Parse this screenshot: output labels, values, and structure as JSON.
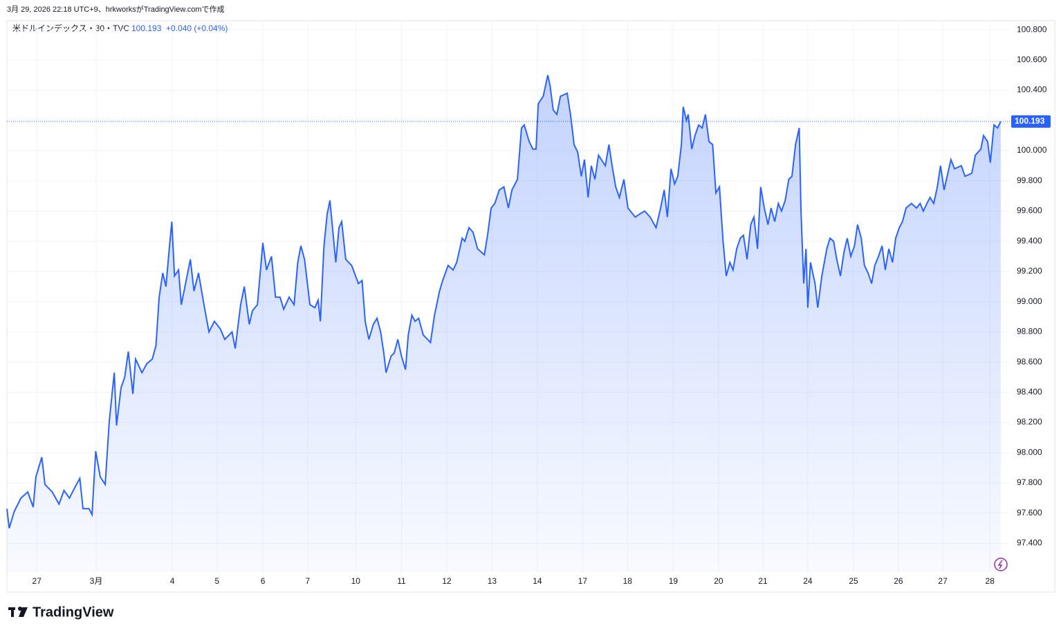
{
  "header": {
    "created": "3月 29, 2026 22:18 UTC+9、hrkworksがTradingView.comで作成",
    "symbol": "米ドルインデックス・30・TVC",
    "change": "+0.040 (+0.04%)",
    "logo": "TradingView"
  },
  "chart_data": {
    "type": "area",
    "color": "#2962ff",
    "grid": true,
    "xlim": [
      -0.66,
      21.48
    ],
    "ylim": [
      97.21,
      100.86
    ],
    "xticks": [
      {
        "value": 0,
        "label": "27"
      },
      {
        "value": 1.31,
        "label": "3月"
      },
      {
        "value": 2.99,
        "label": "4"
      },
      {
        "value": 3.98,
        "label": "5"
      },
      {
        "value": 4.99,
        "label": "6"
      },
      {
        "value": 5.98,
        "label": "7"
      },
      {
        "value": 7.04,
        "label": "10"
      },
      {
        "value": 8.05,
        "label": "11"
      },
      {
        "value": 9.05,
        "label": "12"
      },
      {
        "value": 10.05,
        "label": "13"
      },
      {
        "value": 11.05,
        "label": "14"
      },
      {
        "value": 12.05,
        "label": "17"
      },
      {
        "value": 13.04,
        "label": "18"
      },
      {
        "value": 14.05,
        "label": "19"
      },
      {
        "value": 15.05,
        "label": "20"
      },
      {
        "value": 16.03,
        "label": "21"
      },
      {
        "value": 17.02,
        "label": "24"
      },
      {
        "value": 18.03,
        "label": "25"
      },
      {
        "value": 19.02,
        "label": "26"
      },
      {
        "value": 20.0,
        "label": "27"
      },
      {
        "value": 21.04,
        "label": "28"
      }
    ],
    "yticks": [
      {
        "value": 97.4,
        "label": "97.400"
      },
      {
        "value": 97.6,
        "label": "97.600"
      },
      {
        "value": 97.8,
        "label": "97.800"
      },
      {
        "value": 98.0,
        "label": "98.000"
      },
      {
        "value": 98.2,
        "label": "98.200"
      },
      {
        "value": 98.4,
        "label": "98.400"
      },
      {
        "value": 98.6,
        "label": "98.600"
      },
      {
        "value": 98.8,
        "label": "98.800"
      },
      {
        "value": 99.0,
        "label": "99.000"
      },
      {
        "value": 99.2,
        "label": "99.200"
      },
      {
        "value": 99.4,
        "label": "99.400"
      },
      {
        "value": 99.6,
        "label": "99.600"
      },
      {
        "value": 99.8,
        "label": "99.800"
      },
      {
        "value": 100.0,
        "label": "100.000"
      },
      {
        "value": 100.2,
        "label": "100.200"
      },
      {
        "value": 100.4,
        "label": "100.400"
      },
      {
        "value": 100.6,
        "label": "100.600"
      },
      {
        "value": 100.8,
        "label": "100.800"
      }
    ],
    "x": [
      -0.66,
      -0.61,
      -0.5,
      -0.35,
      -0.2,
      -0.08,
      -0.02,
      0.11,
      0.18,
      0.34,
      0.49,
      0.6,
      0.72,
      0.84,
      0.95,
      1.02,
      1.15,
      1.22,
      1.3,
      1.4,
      1.51,
      1.6,
      1.71,
      1.76,
      1.86,
      1.94,
      2.02,
      2.12,
      2.18,
      2.32,
      2.43,
      2.55,
      2.63,
      2.7,
      2.78,
      2.85,
      2.93,
      2.98,
      3.04,
      3.13,
      3.19,
      3.25,
      3.39,
      3.47,
      3.57,
      3.69,
      3.8,
      3.92,
      4.05,
      4.15,
      4.31,
      4.38,
      4.5,
      4.58,
      4.69,
      4.76,
      4.87,
      4.99,
      5.07,
      5.18,
      5.27,
      5.37,
      5.45,
      5.57,
      5.68,
      5.76,
      5.83,
      5.91,
      6.03,
      6.14,
      6.21,
      6.26,
      6.34,
      6.41,
      6.47,
      6.6,
      6.67,
      6.73,
      6.82,
      6.95,
      7.1,
      7.18,
      7.25,
      7.33,
      7.43,
      7.51,
      7.59,
      7.66,
      7.71,
      7.82,
      7.89,
      7.97,
      8.05,
      8.14,
      8.2,
      8.28,
      8.35,
      8.43,
      8.53,
      8.69,
      8.78,
      8.89,
      8.96,
      9.08,
      9.19,
      9.27,
      9.39,
      9.45,
      9.54,
      9.63,
      9.73,
      9.88,
      9.95,
      10.03,
      10.11,
      10.21,
      10.31,
      10.41,
      10.49,
      10.61,
      10.7,
      10.76,
      10.87,
      10.95,
      11.02,
      11.07,
      11.18,
      11.28,
      11.33,
      11.4,
      11.48,
      11.56,
      11.71,
      11.79,
      11.86,
      11.94,
      12.02,
      12.09,
      12.17,
      12.24,
      12.32,
      12.4,
      12.55,
      12.63,
      12.7,
      12.78,
      12.86,
      12.96,
      13.05,
      13.21,
      13.31,
      13.42,
      13.54,
      13.67,
      13.77,
      13.85,
      13.92,
      14.0,
      14.08,
      14.15,
      14.23,
      14.27,
      14.34,
      14.38,
      14.46,
      14.53,
      14.61,
      14.69,
      14.76,
      14.84,
      14.92,
      14.99,
      15.07,
      15.15,
      15.22,
      15.3,
      15.37,
      15.45,
      15.53,
      15.6,
      15.68,
      15.76,
      15.83,
      15.91,
      15.98,
      16.06,
      16.14,
      16.21,
      16.29,
      16.37,
      16.44,
      16.52,
      16.6,
      16.67,
      16.75,
      16.83,
      16.87,
      16.93,
      16.98,
      17.02,
      17.08,
      17.18,
      17.24,
      17.33,
      17.44,
      17.51,
      17.59,
      17.66,
      17.74,
      17.82,
      17.89,
      17.97,
      18.05,
      18.12,
      18.2,
      18.27,
      18.35,
      18.43,
      18.5,
      18.58,
      18.66,
      18.73,
      18.81,
      18.89,
      18.96,
      19.04,
      19.11,
      19.19,
      19.31,
      19.42,
      19.5,
      19.57,
      19.65,
      19.72,
      19.8,
      19.88,
      19.95,
      20.03,
      20.11,
      20.18,
      20.26,
      20.41,
      20.49,
      20.64,
      20.72,
      20.84,
      20.9,
      20.99,
      21.05,
      21.13,
      21.21,
      21.28
    ],
    "values": [
      97.63,
      97.5,
      97.61,
      97.7,
      97.74,
      97.64,
      97.84,
      97.97,
      97.79,
      97.74,
      97.66,
      97.75,
      97.7,
      97.77,
      97.83,
      97.63,
      97.63,
      97.59,
      98.01,
      97.84,
      97.79,
      98.21,
      98.53,
      98.18,
      98.43,
      98.5,
      98.67,
      98.39,
      98.62,
      98.53,
      98.59,
      98.62,
      98.71,
      99.03,
      99.19,
      99.1,
      99.37,
      99.53,
      99.17,
      99.21,
      98.98,
      99.07,
      99.28,
      99.07,
      99.19,
      98.98,
      98.8,
      98.87,
      98.82,
      98.75,
      98.8,
      98.69,
      98.98,
      99.1,
      98.85,
      98.94,
      98.98,
      99.39,
      99.21,
      99.3,
      99.03,
      99.03,
      98.95,
      99.03,
      98.98,
      99.26,
      99.37,
      99.28,
      98.98,
      98.96,
      99.01,
      98.87,
      99.37,
      99.58,
      99.67,
      99.26,
      99.49,
      99.53,
      99.28,
      99.24,
      99.12,
      99.14,
      98.87,
      98.75,
      98.85,
      98.89,
      98.8,
      98.66,
      98.53,
      98.64,
      98.66,
      98.75,
      98.64,
      98.55,
      98.78,
      98.91,
      98.87,
      98.89,
      98.78,
      98.73,
      98.91,
      99.07,
      99.14,
      99.24,
      99.21,
      99.26,
      99.42,
      99.4,
      99.49,
      99.46,
      99.35,
      99.31,
      99.44,
      99.62,
      99.65,
      99.74,
      99.76,
      99.62,
      99.74,
      99.81,
      100.15,
      100.17,
      100.06,
      100.01,
      100.01,
      100.31,
      100.36,
      100.5,
      100.43,
      100.27,
      100.24,
      100.36,
      100.38,
      100.22,
      100.04,
      99.99,
      99.83,
      99.94,
      99.69,
      99.9,
      99.81,
      99.97,
      99.9,
      100.04,
      99.9,
      99.76,
      99.69,
      99.81,
      99.62,
      99.56,
      99.58,
      99.6,
      99.56,
      99.49,
      99.62,
      99.74,
      99.56,
      99.88,
      99.78,
      99.83,
      100.04,
      100.29,
      100.2,
      100.24,
      100.01,
      100.1,
      100.17,
      100.15,
      100.24,
      100.06,
      100.04,
      99.72,
      99.76,
      99.4,
      99.17,
      99.26,
      99.21,
      99.35,
      99.42,
      99.44,
      99.28,
      99.51,
      99.56,
      99.35,
      99.76,
      99.62,
      99.51,
      99.62,
      99.53,
      99.65,
      99.6,
      99.67,
      99.81,
      99.83,
      100.04,
      100.15,
      99.6,
      99.12,
      99.35,
      98.96,
      99.26,
      99.12,
      98.96,
      99.17,
      99.35,
      99.42,
      99.4,
      99.28,
      99.17,
      99.33,
      99.42,
      99.3,
      99.37,
      99.51,
      99.42,
      99.24,
      99.19,
      99.12,
      99.24,
      99.3,
      99.37,
      99.21,
      99.35,
      99.26,
      99.42,
      99.49,
      99.53,
      99.62,
      99.65,
      99.62,
      99.65,
      99.6,
      99.65,
      99.69,
      99.65,
      99.76,
      99.9,
      99.74,
      99.85,
      99.94,
      99.88,
      99.9,
      99.83,
      99.85,
      99.97,
      100.01,
      100.1,
      100.06,
      99.92,
      100.17,
      100.15,
      100.193
    ]
  }
}
